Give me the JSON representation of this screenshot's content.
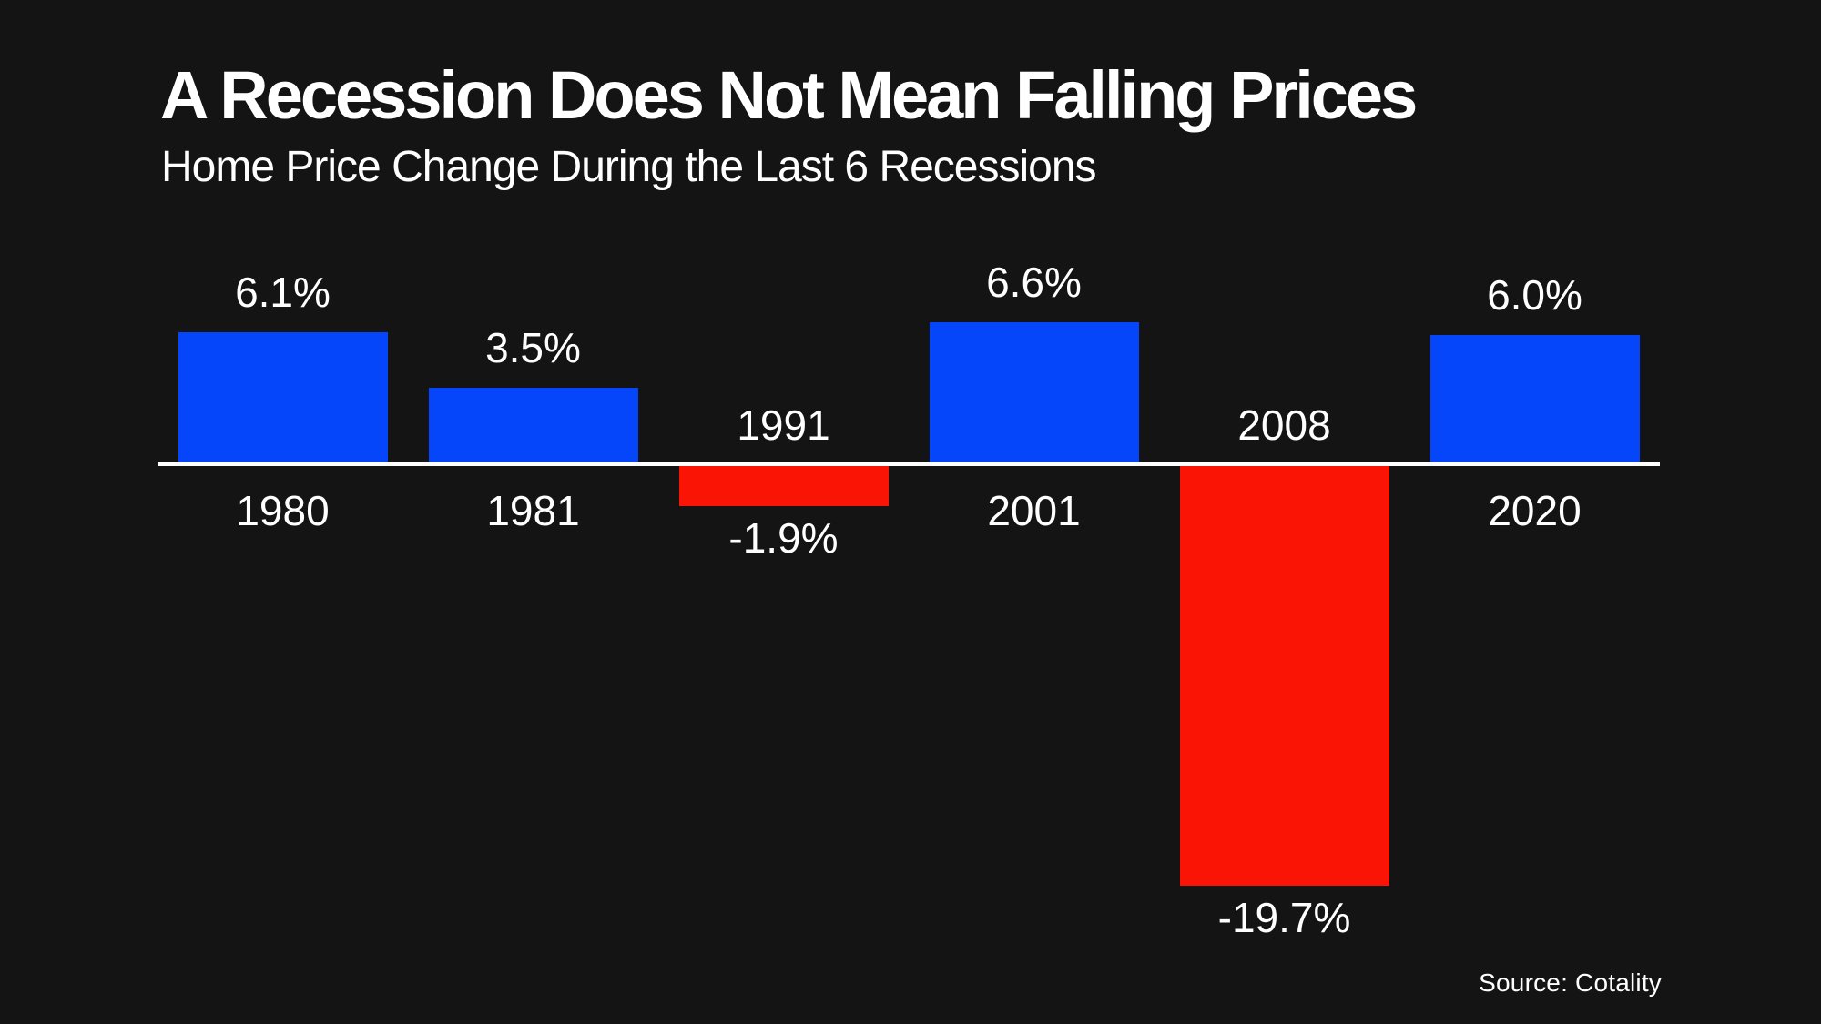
{
  "header": {
    "title": "A Recession Does Not Mean Falling Prices",
    "subtitle": "Home Price Change During the Last 6 Recessions"
  },
  "footer": {
    "source": "Source: Cotality"
  },
  "chart_data": {
    "type": "bar",
    "title": "A Recession Does Not Mean Falling Prices",
    "subtitle": "Home Price Change During the Last 6 Recessions",
    "categories": [
      "1980",
      "1981",
      "1991",
      "2001",
      "2008",
      "2020"
    ],
    "values": [
      6.1,
      3.5,
      -1.9,
      6.6,
      -19.7,
      6.0
    ],
    "value_labels": [
      "6.1%",
      "3.5%",
      "-1.9%",
      "6.6%",
      "-19.7%",
      "6.0%"
    ],
    "ylim": [
      -19.7,
      6.6
    ],
    "grid": "off",
    "legend": "none",
    "axis": "zero-baseline-only",
    "positive_color": "#0546FA",
    "negative_color": "#FA1405",
    "axis_color": "#FFFFFF",
    "background_color": "#141415",
    "text_color": "#FFFFFF",
    "source": "Source: Cotality"
  }
}
